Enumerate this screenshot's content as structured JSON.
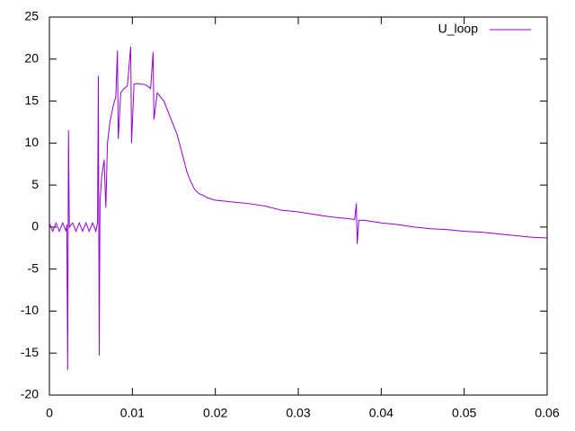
{
  "chart_data": {
    "type": "line",
    "x": [
      0,
      0.0004,
      0.0008,
      0.0012,
      0.0016,
      0.002,
      0.0021,
      0.0022,
      0.0023,
      0.0024,
      0.0028,
      0.0032,
      0.0036,
      0.004,
      0.0044,
      0.0048,
      0.0052,
      0.0056,
      0.0058,
      0.0059,
      0.006,
      0.0061,
      0.0063,
      0.0066,
      0.0068,
      0.007,
      0.0073,
      0.0077,
      0.008,
      0.0082,
      0.0083,
      0.0086,
      0.009,
      0.0094,
      0.0098,
      0.0099,
      0.0102,
      0.0106,
      0.011,
      0.0114,
      0.0118,
      0.0122,
      0.0125,
      0.0126,
      0.013,
      0.0134,
      0.0138,
      0.0142,
      0.0146,
      0.015,
      0.0154,
      0.0158,
      0.0162,
      0.0166,
      0.017,
      0.0175,
      0.018,
      0.0185,
      0.019,
      0.02,
      0.022,
      0.024,
      0.026,
      0.028,
      0.03,
      0.032,
      0.034,
      0.036,
      0.0368,
      0.037,
      0.0371,
      0.0373,
      0.038,
      0.04,
      0.042,
      0.044,
      0.046,
      0.048,
      0.05,
      0.052,
      0.054,
      0.056,
      0.058,
      0.06
    ],
    "series": [
      {
        "name": "U_loop",
        "color": "#9400d3",
        "values": [
          0.5,
          -0.5,
          0.5,
          -0.5,
          0.5,
          -0.5,
          0.3,
          -17,
          11.5,
          0,
          0.5,
          -0.5,
          0.5,
          -0.5,
          0.5,
          -0.5,
          0.5,
          -0.5,
          0.5,
          18,
          -15.3,
          3,
          6,
          8,
          2.3,
          10,
          12.5,
          14.5,
          15.5,
          21,
          10.5,
          16,
          16.5,
          16.8,
          21.5,
          10,
          17,
          17.1,
          17,
          17,
          16.8,
          16.5,
          20.8,
          12.8,
          16,
          15.5,
          15,
          14,
          13,
          12,
          11,
          9.5,
          8,
          6.5,
          5.5,
          4.5,
          4,
          3.8,
          3.5,
          3.2,
          3,
          2.8,
          2.5,
          2,
          1.8,
          1.5,
          1.2,
          1,
          0.9,
          2.8,
          -2,
          0.8,
          0.8,
          0.5,
          0.3,
          0,
          -0.2,
          -0.3,
          -0.5,
          -0.6,
          -0.8,
          -1,
          -1.2,
          -1.3
        ]
      }
    ],
    "xlim": [
      0,
      0.06
    ],
    "xticks": [
      0,
      0.01,
      0.02,
      0.03,
      0.04,
      0.05,
      0.06
    ],
    "ylim": [
      -20,
      25
    ],
    "yticks": [
      -20,
      -15,
      -10,
      -5,
      0,
      5,
      10,
      15,
      20,
      25
    ],
    "legend": "top right"
  }
}
